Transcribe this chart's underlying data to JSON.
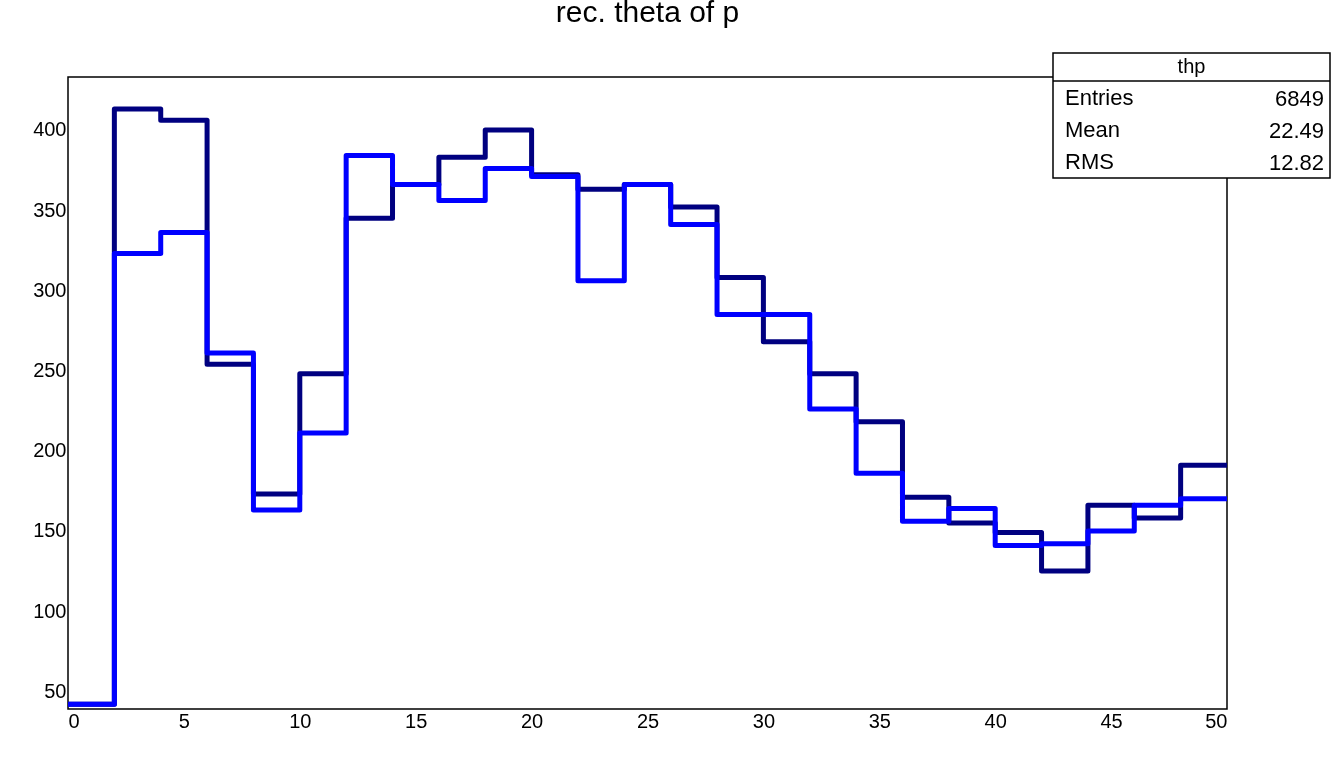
{
  "chart_data": {
    "type": "histogram",
    "title": "rec. theta of p",
    "bins": [
      0,
      2,
      4,
      6,
      8,
      10,
      12,
      14,
      16,
      18,
      20,
      22,
      24,
      26,
      28,
      30,
      32,
      34,
      36,
      38,
      40,
      42,
      44,
      46,
      48,
      50
    ],
    "series": [
      {
        "color": "#000080",
        "values": [
          42,
          413,
          406,
          254,
          173,
          248,
          345,
          366,
          383,
          400,
          372,
          363,
          366,
          352,
          308,
          268,
          248,
          218,
          171,
          155,
          149,
          125,
          166,
          158,
          191
        ]
      },
      {
        "color": "#0000ff",
        "values": [
          42,
          323,
          336,
          261,
          163,
          211,
          384,
          366,
          356,
          376,
          371,
          306,
          366,
          341,
          285,
          285,
          226,
          186,
          156,
          164,
          141,
          142,
          150,
          166,
          170
        ]
      }
    ],
    "xlim": [
      0,
      50
    ],
    "xticks": [
      0,
      5,
      10,
      15,
      20,
      25,
      30,
      35,
      40,
      45,
      50
    ],
    "ylim": [
      39,
      433
    ],
    "yticks": [
      50,
      100,
      150,
      200,
      250,
      300,
      350,
      400
    ],
    "grid": false,
    "annotations": [
      "thp",
      "Entries",
      "6849",
      "Mean",
      "22.49",
      "RMS",
      "12.82"
    ]
  }
}
